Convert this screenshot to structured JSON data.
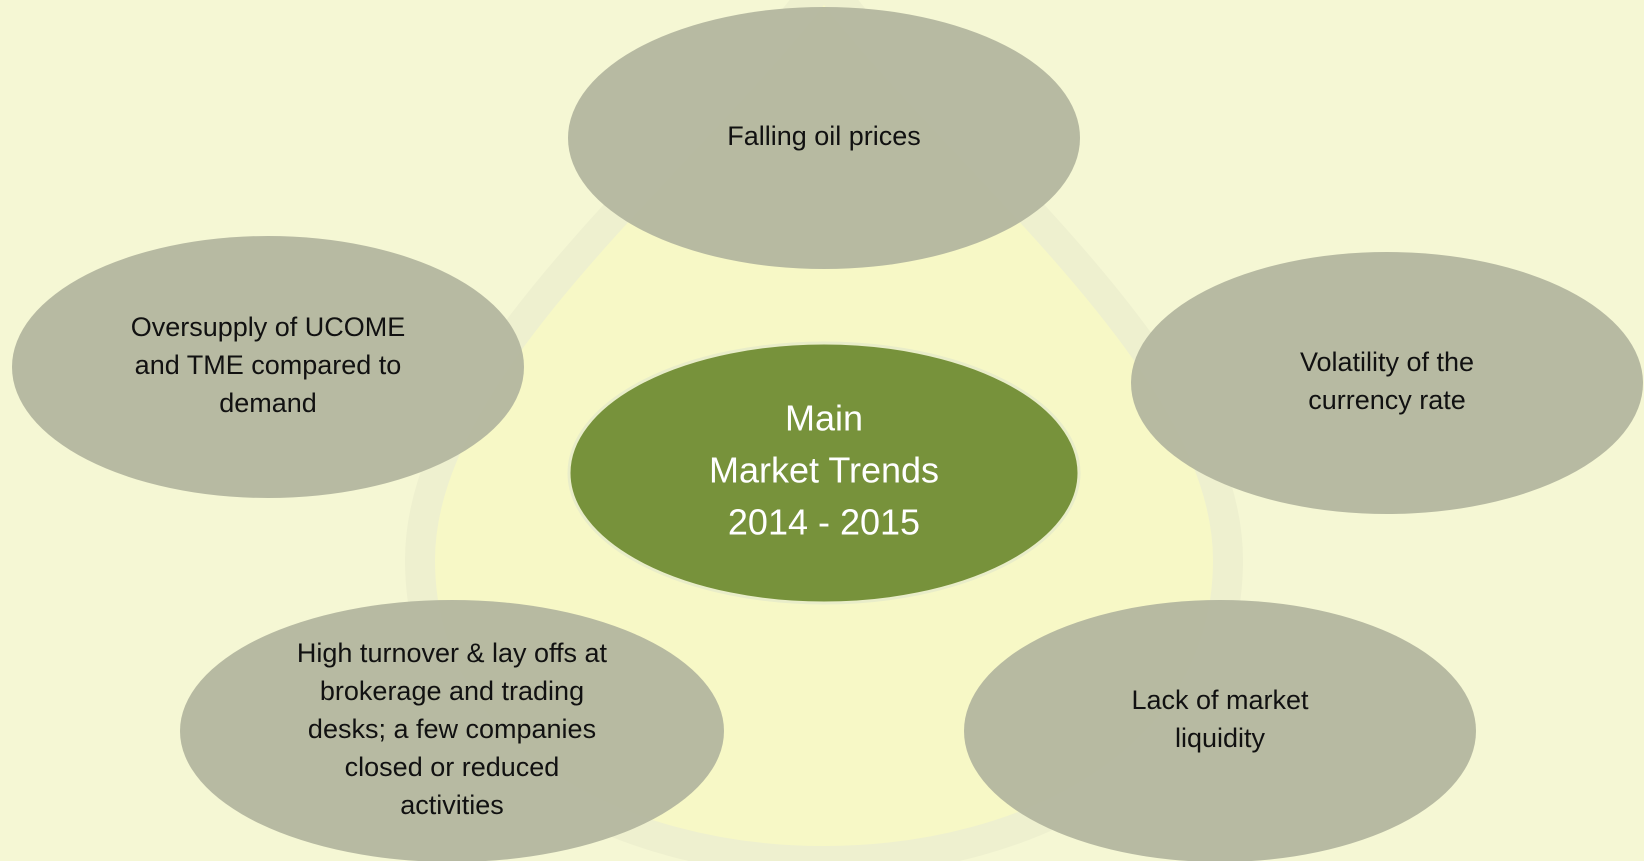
{
  "center": {
    "lines": [
      "Main",
      "Market Trends",
      "2014 - 2015"
    ]
  },
  "nodes": [
    {
      "lines": [
        "Falling oil prices"
      ]
    },
    {
      "lines": [
        "Oversupply of UCOME",
        "and TME compared to",
        "demand"
      ]
    },
    {
      "lines": [
        "Volatility of the",
        "currency rate"
      ]
    },
    {
      "lines": [
        "High turnover & lay offs at",
        "brokerage and trading",
        "desks; a few companies",
        "closed or reduced",
        "activities"
      ]
    },
    {
      "lines": [
        "Lack of market",
        "liquidity"
      ]
    }
  ]
}
